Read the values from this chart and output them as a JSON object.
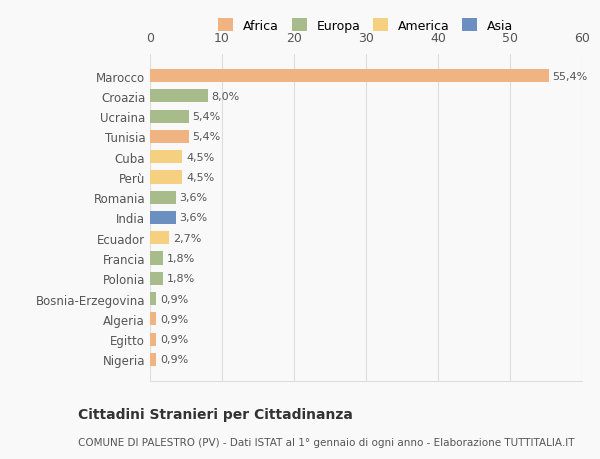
{
  "categories": [
    "Marocco",
    "Croazia",
    "Ucraina",
    "Tunisia",
    "Cuba",
    "Perù",
    "Romania",
    "India",
    "Ecuador",
    "Francia",
    "Polonia",
    "Bosnia-Erzegovina",
    "Algeria",
    "Egitto",
    "Nigeria"
  ],
  "values": [
    55.4,
    8.0,
    5.4,
    5.4,
    4.5,
    4.5,
    3.6,
    3.6,
    2.7,
    1.8,
    1.8,
    0.9,
    0.9,
    0.9,
    0.9
  ],
  "labels": [
    "55,4%",
    "8,0%",
    "5,4%",
    "5,4%",
    "4,5%",
    "4,5%",
    "3,6%",
    "3,6%",
    "2,7%",
    "1,8%",
    "1,8%",
    "0,9%",
    "0,9%",
    "0,9%",
    "0,9%"
  ],
  "colors": [
    "#F0B482",
    "#A8BB8A",
    "#A8BB8A",
    "#F0B482",
    "#F5D080",
    "#F5D080",
    "#A8BB8A",
    "#6A8FC0",
    "#F5D080",
    "#A8BB8A",
    "#A8BB8A",
    "#A8BB8A",
    "#F0B482",
    "#F0B482",
    "#F0B482"
  ],
  "legend_names": [
    "Africa",
    "Europa",
    "America",
    "Asia"
  ],
  "legend_colors": [
    "#F0B482",
    "#A8BB8A",
    "#F5D080",
    "#6A8FC0"
  ],
  "title": "Cittadini Stranieri per Cittadinanza",
  "subtitle": "COMUNE DI PALESTRO (PV) - Dati ISTAT al 1° gennaio di ogni anno - Elaborazione TUTTITALIA.IT",
  "xlim": [
    0,
    60
  ],
  "xticks": [
    0,
    10,
    20,
    30,
    40,
    50,
    60
  ],
  "background_color": "#f9f9f9",
  "grid_color": "#dddddd",
  "text_color": "#555555"
}
